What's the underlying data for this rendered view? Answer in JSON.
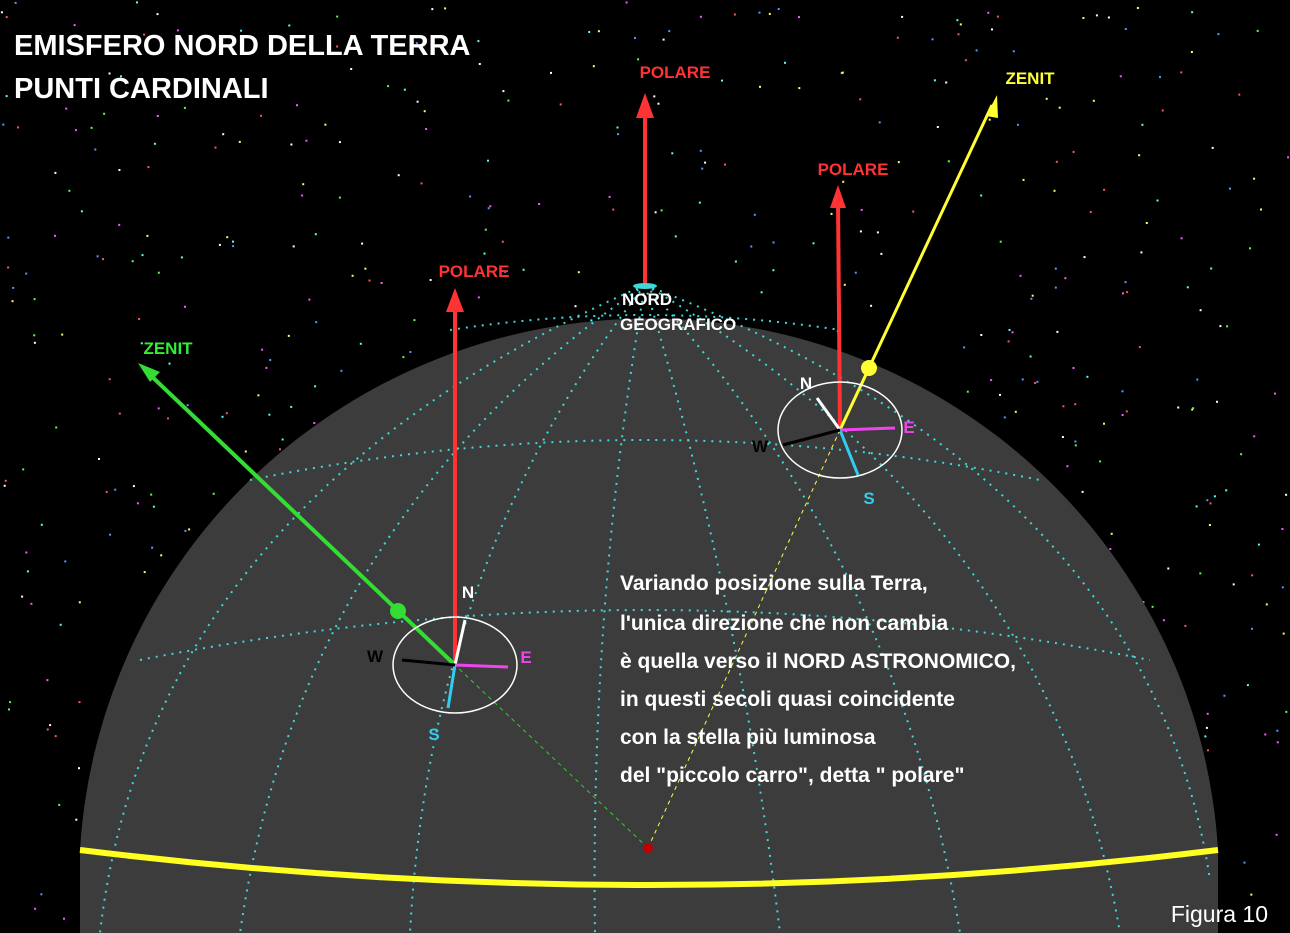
{
  "header": {
    "title": [
      "EMISFERO NORD DELLA TERRA",
      "PUNTI CARDINALI"
    ]
  },
  "center": {
    "polar_label": "POLARE",
    "north_label": [
      "NORD",
      "GEOGRAFICO"
    ]
  },
  "observer_left": {
    "polar_label": "POLARE",
    "zenith_label": "ZENIT",
    "n": "N",
    "e": "E",
    "s": "S",
    "w": "W"
  },
  "observer_right": {
    "polar_label": "POLARE",
    "zenith_label": "ZENIT",
    "n": "N",
    "e": "E",
    "s": "S",
    "w": "W"
  },
  "explanation": {
    "lines": [
      "Variando  posizione sulla Terra,",
      "l'unica direzione che non cambia",
      "è quella verso il NORD ASTRONOMICO,",
      "in questi secoli quasi coincidente",
      "con la  stella più luminosa",
      "del \"piccolo carro\", detta \" polare\""
    ]
  },
  "footer": {
    "figure": "Figura 10"
  }
}
